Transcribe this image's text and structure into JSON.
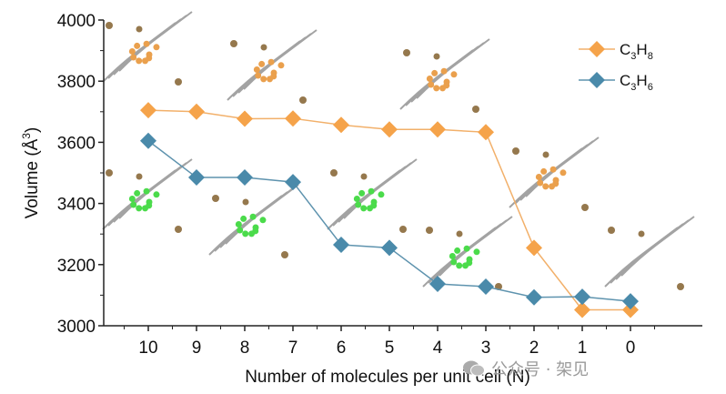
{
  "chart_data": {
    "type": "line",
    "title": "",
    "xlabel": "Number of molecules per unit cell (N)",
    "ylabel": "Volume (Å³)",
    "ylabel_parts": {
      "main": "Volume (Å",
      "sup": "3",
      "close": ")"
    },
    "categories": [
      "10",
      "9",
      "8",
      "7",
      "6",
      "5",
      "4",
      "3",
      "2",
      "1",
      "0"
    ],
    "ylim": [
      3000,
      4000
    ],
    "yticks": [
      3000,
      3200,
      3400,
      3600,
      3800,
      4000
    ],
    "ytick_labels": [
      "3000",
      "3200",
      "3400",
      "3600",
      "3800",
      "4000"
    ],
    "grid": false,
    "legend_position": "top-right",
    "series": [
      {
        "name": "C3H8",
        "label_parts": {
          "a": "C",
          "sub1": "3",
          "b": "H",
          "sub2": "8"
        },
        "color": "#F5A34A",
        "line_color": "#F2B06A",
        "marker": "diamond",
        "values": [
          3705,
          3700,
          3677,
          3678,
          3657,
          3642,
          3642,
          3633,
          3255,
          3052,
          3052
        ]
      },
      {
        "name": "C3H6",
        "label_parts": {
          "a": "C",
          "sub1": "3",
          "b": "H",
          "sub2": "6"
        },
        "color": "#4A8AAA",
        "line_color": "#5E93AE",
        "marker": "diamond",
        "values": [
          3605,
          3485,
          3485,
          3470,
          3265,
          3255,
          3137,
          3128,
          3093,
          3095,
          3080
        ]
      }
    ],
    "annotations": [
      "Crystal structure insets showing adsorbed C3H8 (orange) molecules above orange series at N=10, 8, 4(3), 2",
      "Crystal structure insets showing adsorbed C3H6 (green) molecules below blue series at N=10, 8, 5(6), 4, and empty framework at N=0"
    ]
  },
  "watermark": {
    "text": "公众号 · 架见",
    "icon": "wechat-icon"
  }
}
